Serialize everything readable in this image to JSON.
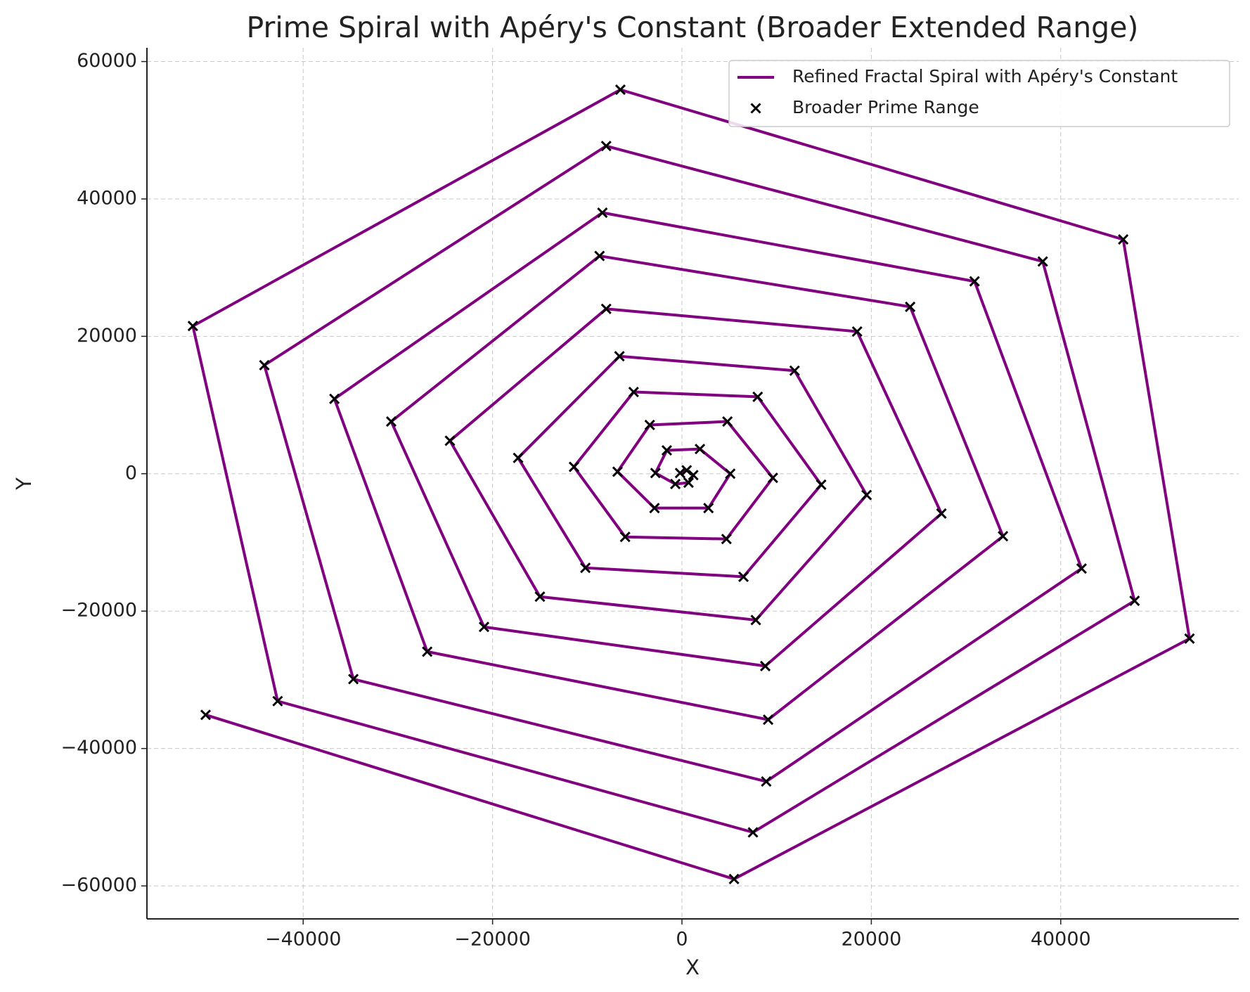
{
  "chart_data": {
    "type": "line-scatter",
    "title": "Prime Spiral with Apéry's Constant (Broader Extended Range)",
    "x_label": "X",
    "y_label": "Y",
    "series": [
      {
        "name": "Refined Fractal Spiral with Apéry's Constant",
        "color": "#800080",
        "kind": "line"
      },
      {
        "name": "Broader Prime Range",
        "color": "#000000",
        "kind": "scatter"
      }
    ],
    "x": [
      -200,
      500,
      1200,
      700,
      -700,
      -2800,
      -1600,
      1900,
      5100,
      2800,
      -2900,
      -6800,
      -3400,
      4800,
      9600,
      4700,
      -6000,
      -11400,
      -5100,
      8000,
      14700,
      6500,
      -10200,
      -17300,
      -6600,
      11900,
      19500,
      7800,
      -15000,
      -24500,
      -8000,
      18500,
      27400,
      8800,
      -20900,
      -30700,
      -8700,
      24100,
      33900,
      9100,
      -26900,
      -36700,
      -8400,
      30900,
      42200,
      8900,
      -34700,
      -44100,
      -8000,
      38100,
      47800,
      7500,
      -42700,
      -51650,
      -6500,
      46600,
      53600,
      5500,
      -50300
    ],
    "y": [
      100,
      500,
      -200,
      -1300,
      -1500,
      100,
      3400,
      3600,
      0,
      -5000,
      -5000,
      300,
      7100,
      7600,
      -600,
      -9500,
      -9200,
      1000,
      11900,
      11200,
      -1600,
      -15000,
      -13700,
      2300,
      17100,
      15000,
      -3100,
      -21300,
      -17900,
      4800,
      24000,
      20700,
      -5800,
      -28000,
      -22300,
      7600,
      31700,
      24300,
      -9100,
      -35800,
      -25900,
      10900,
      38000,
      28000,
      -13800,
      -44800,
      -29900,
      15800,
      47700,
      30900,
      -18500,
      -52200,
      -33100,
      21500,
      55900,
      34100,
      -24000,
      -59000,
      -35100
    ],
    "xlim": [
      -56500,
      58800
    ],
    "ylim": [
      -64800,
      62000
    ],
    "xticks": [
      {
        "value": -40000,
        "label": "−40000"
      },
      {
        "value": -20000,
        "label": "−20000"
      },
      0,
      20000,
      40000
    ],
    "yticks": [
      {
        "value": -60000,
        "label": "−60000"
      },
      {
        "value": -40000,
        "label": "−40000"
      },
      {
        "value": -20000,
        "label": "−20000"
      },
      0,
      20000,
      40000,
      60000
    ],
    "grid": true,
    "legend": "upper right"
  }
}
